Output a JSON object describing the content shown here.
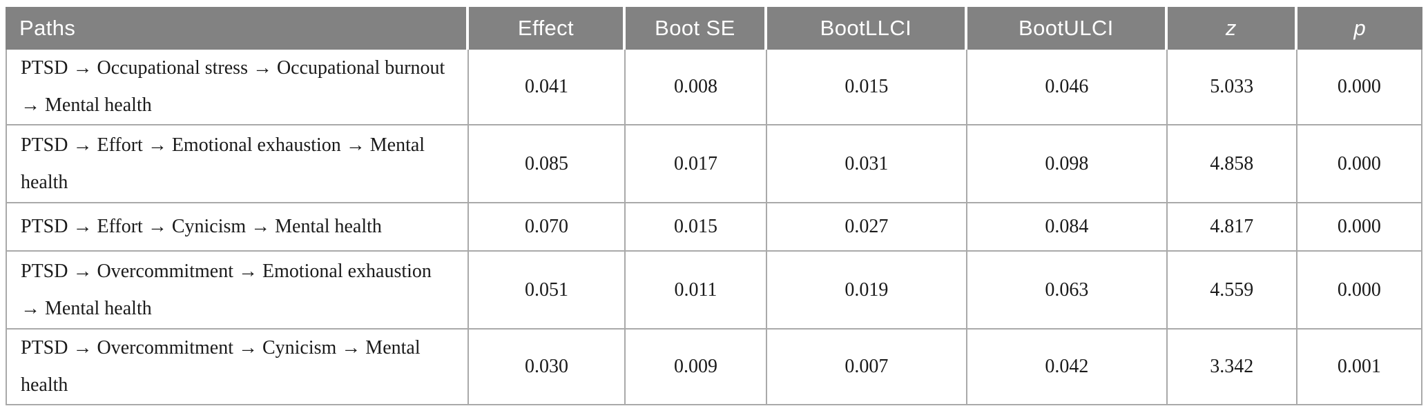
{
  "table": {
    "columns": [
      {
        "label": "Paths"
      },
      {
        "label": "Effect"
      },
      {
        "label": "Boot SE"
      },
      {
        "label": "BootLLCI"
      },
      {
        "label": "BootULCI"
      },
      {
        "label": "z"
      },
      {
        "label": "p"
      }
    ],
    "rows": [
      {
        "path": "PTSD → Occupational stress → Occupational burnout → Mental health",
        "effect": "0.041",
        "boot_se": "0.008",
        "boot_llci": "0.015",
        "boot_ulci": "0.046",
        "z": "5.033",
        "p": "0.000"
      },
      {
        "path": "PTSD → Effort → Emotional exhaustion → Mental health",
        "effect": "0.085",
        "boot_se": "0.017",
        "boot_llci": "0.031",
        "boot_ulci": "0.098",
        "z": "4.858",
        "p": "0.000"
      },
      {
        "path": "PTSD → Effort → Cynicism → Mental health",
        "effect": "0.070",
        "boot_se": "0.015",
        "boot_llci": "0.027",
        "boot_ulci": "0.084",
        "z": "4.817",
        "p": "0.000"
      },
      {
        "path": "PTSD → Overcommitment → Emotional exhaustion → Mental health",
        "effect": "0.051",
        "boot_se": "0.011",
        "boot_llci": "0.019",
        "boot_ulci": "0.063",
        "z": "4.559",
        "p": "0.000"
      },
      {
        "path": "PTSD → Overcommitment → Cynicism → Mental health",
        "effect": "0.030",
        "boot_se": "0.009",
        "boot_llci": "0.007",
        "boot_ulci": "0.042",
        "z": "3.342",
        "p": "0.001"
      }
    ]
  },
  "colors": {
    "header_bg": "#828282",
    "header_text": "#ffffff",
    "body_text": "#1a1a1a",
    "grid_line": "#a9a9a9"
  }
}
